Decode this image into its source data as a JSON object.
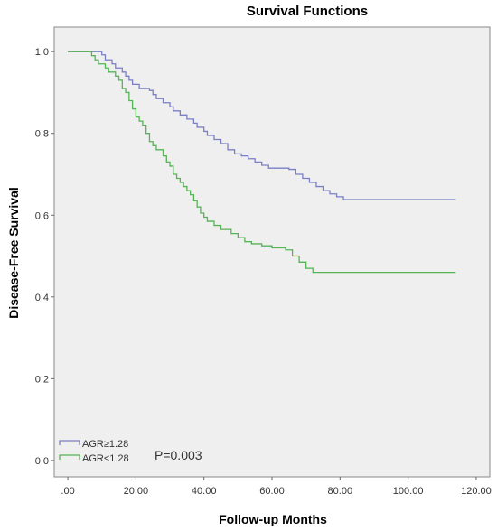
{
  "chart_data": {
    "type": "line",
    "title": "Survival Functions",
    "xlabel": "Follow-up Months",
    "ylabel": "Disease-Free Survival",
    "xlim": [
      -4,
      124
    ],
    "ylim": [
      -0.04,
      1.06
    ],
    "x_ticks": [
      0,
      20,
      40,
      60,
      80,
      100,
      120
    ],
    "x_tick_labels": [
      ".00",
      "20.00",
      "40.00",
      "60.00",
      "80.00",
      "100.00",
      "120.00"
    ],
    "y_ticks": [
      0,
      0.2,
      0.4,
      0.6,
      0.8,
      1.0
    ],
    "y_tick_labels": [
      "0.0",
      "0.2",
      "0.4",
      "0.6",
      "0.8",
      "1.0"
    ],
    "grid": false,
    "legend_position": "bottom-left",
    "annotation": "P=0.003",
    "background": "#efefef",
    "series": [
      {
        "name": "AGR≥1.28",
        "color": "#7b7fc4",
        "step_points": [
          [
            0,
            1.0
          ],
          [
            10,
            0.992
          ],
          [
            11,
            0.98
          ],
          [
            13,
            0.97
          ],
          [
            14,
            0.96
          ],
          [
            16,
            0.95
          ],
          [
            17,
            0.94
          ],
          [
            18,
            0.93
          ],
          [
            19,
            0.92
          ],
          [
            21,
            0.91
          ],
          [
            24,
            0.905
          ],
          [
            25,
            0.895
          ],
          [
            26,
            0.885
          ],
          [
            28,
            0.875
          ],
          [
            30,
            0.865
          ],
          [
            31,
            0.855
          ],
          [
            33,
            0.845
          ],
          [
            35,
            0.835
          ],
          [
            37,
            0.825
          ],
          [
            38,
            0.815
          ],
          [
            40,
            0.805
          ],
          [
            41,
            0.795
          ],
          [
            43,
            0.785
          ],
          [
            45,
            0.775
          ],
          [
            47,
            0.76
          ],
          [
            49,
            0.75
          ],
          [
            51,
            0.745
          ],
          [
            53,
            0.738
          ],
          [
            55,
            0.73
          ],
          [
            57,
            0.722
          ],
          [
            59,
            0.715
          ],
          [
            65,
            0.712
          ],
          [
            67,
            0.7
          ],
          [
            69,
            0.69
          ],
          [
            71,
            0.68
          ],
          [
            73,
            0.67
          ],
          [
            75,
            0.66
          ],
          [
            77,
            0.652
          ],
          [
            79,
            0.645
          ],
          [
            81,
            0.638
          ],
          [
            114,
            0.638
          ]
        ]
      },
      {
        "name": "AGR<1.28",
        "color": "#55b455",
        "step_points": [
          [
            0,
            1.0
          ],
          [
            7,
            0.99
          ],
          [
            8,
            0.98
          ],
          [
            9,
            0.97
          ],
          [
            11,
            0.96
          ],
          [
            12,
            0.95
          ],
          [
            14,
            0.94
          ],
          [
            15,
            0.93
          ],
          [
            16,
            0.91
          ],
          [
            17,
            0.9
          ],
          [
            18,
            0.88
          ],
          [
            19,
            0.86
          ],
          [
            20,
            0.84
          ],
          [
            21,
            0.83
          ],
          [
            22,
            0.82
          ],
          [
            23,
            0.8
          ],
          [
            24,
            0.78
          ],
          [
            25,
            0.77
          ],
          [
            26,
            0.76
          ],
          [
            28,
            0.745
          ],
          [
            29,
            0.73
          ],
          [
            30,
            0.72
          ],
          [
            31,
            0.7
          ],
          [
            32,
            0.69
          ],
          [
            33,
            0.68
          ],
          [
            34,
            0.67
          ],
          [
            35,
            0.66
          ],
          [
            36,
            0.65
          ],
          [
            37,
            0.635
          ],
          [
            38,
            0.62
          ],
          [
            39,
            0.605
          ],
          [
            40,
            0.595
          ],
          [
            41,
            0.585
          ],
          [
            43,
            0.575
          ],
          [
            45,
            0.565
          ],
          [
            48,
            0.555
          ],
          [
            50,
            0.545
          ],
          [
            52,
            0.535
          ],
          [
            54,
            0.53
          ],
          [
            57,
            0.525
          ],
          [
            60,
            0.52
          ],
          [
            64,
            0.515
          ],
          [
            66,
            0.5
          ],
          [
            68,
            0.485
          ],
          [
            70,
            0.47
          ],
          [
            72,
            0.46
          ],
          [
            114,
            0.46
          ]
        ]
      }
    ]
  }
}
